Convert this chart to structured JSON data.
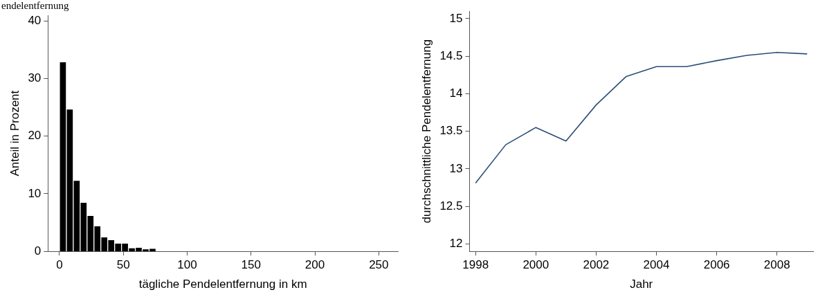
{
  "chart_data": [
    {
      "type": "histogram",
      "annotations": [
        "endelentfernung"
      ],
      "xlabel": "tägliche Pendelentfernung in km",
      "ylabel": "Anteil in Prozent",
      "bins": [
        0,
        5.4,
        10.8,
        16.2,
        21.6,
        27,
        32.4,
        37.8,
        43.2,
        48.6,
        54,
        59.4,
        64.8,
        70.2,
        75.6
      ],
      "values": [
        32.8,
        24.6,
        12.2,
        8.4,
        6.1,
        4.3,
        2.4,
        1.9,
        1.3,
        1.3,
        0.5,
        0.6,
        0.3,
        0.4
      ],
      "color": "#000000",
      "xlim": [
        -9,
        265
      ],
      "xticks": [
        0,
        50,
        100,
        150,
        200,
        250
      ],
      "ylim": [
        0,
        41
      ],
      "yticks": [
        0,
        10,
        20,
        30,
        40
      ],
      "grid": false,
      "legend": false
    },
    {
      "type": "line",
      "xlabel": "Jahr",
      "ylabel": "durchschnittliche Pendelentfernung",
      "x": [
        1998,
        1999,
        2000,
        2001,
        2002,
        2003,
        2004,
        2005,
        2006,
        2007,
        2008,
        2009
      ],
      "series": [
        {
          "color": "#2a4d78",
          "values": [
            12.81,
            13.32,
            13.55,
            13.37,
            13.85,
            14.23,
            14.36,
            14.36,
            14.44,
            14.51,
            14.55,
            14.53
          ]
        }
      ],
      "xlim": [
        1997.8,
        2009.2
      ],
      "xticks": [
        1998,
        2000,
        2002,
        2004,
        2006,
        2008
      ],
      "ylim": [
        11.9,
        15.1
      ],
      "yticks": [
        12,
        12.5,
        13,
        13.5,
        14,
        14.5,
        15
      ],
      "grid": false,
      "legend": false,
      "marker": "none",
      "line_style": "solid"
    }
  ]
}
